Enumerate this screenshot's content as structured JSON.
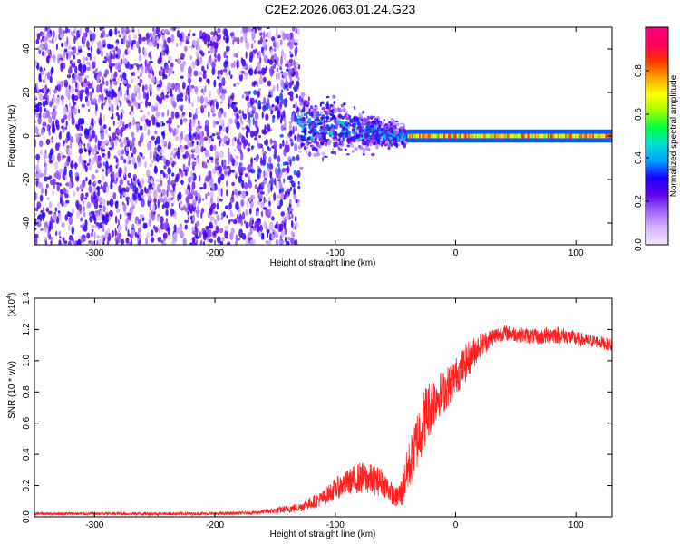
{
  "figure_title": "C2E2.2026.063.01.24.G23",
  "chart_data": [
    {
      "type": "heatmap",
      "name": "spectrogram",
      "xlabel": "Height of straight line (km)",
      "ylabel": "Frequency (Hz)",
      "xlim": [
        -350,
        130
      ],
      "ylim": [
        -50,
        50
      ],
      "xticks": [
        -300,
        -200,
        -100,
        0,
        100
      ],
      "xtick_labels": [
        "-300",
        "-200",
        "-100",
        "0",
        "100"
      ],
      "yticks": [
        -40,
        -20,
        0,
        20,
        40
      ],
      "ytick_labels": [
        "-40",
        "-20",
        "0",
        "20",
        "40"
      ],
      "colorbar": {
        "label": "Normalized spectral amplitude",
        "range": [
          0,
          1
        ],
        "ticks": [
          0.0,
          0.2,
          0.4,
          0.6,
          0.8
        ],
        "tick_labels": [
          "0.0",
          "0.2",
          "0.4",
          "0.6",
          "0.8"
        ],
        "colors": [
          "#f2e6ff",
          "#d9b3ff",
          "#a066ff",
          "#6000e8",
          "#1a00ff",
          "#00a0ff",
          "#00e0d0",
          "#00ff40",
          "#a0ff00",
          "#ffff00",
          "#ffa000",
          "#ff3000",
          "#ff0060",
          "#ff0080"
        ]
      },
      "regions": [
        {
          "desc": "broadband noise",
          "x_range": [
            -350,
            -130
          ],
          "freq_spread": 50,
          "intensity": 0.2
        },
        {
          "desc": "collapsing noise cone",
          "x_range": [
            -130,
            -40
          ],
          "freq_spread_start": 22,
          "freq_spread_end": 6,
          "intensity": 0.3
        },
        {
          "desc": "signal tone",
          "x_range": [
            -40,
            130
          ],
          "center_freq": 0,
          "freq_width": 2,
          "intensity": 0.85
        }
      ]
    },
    {
      "type": "line",
      "name": "snr",
      "xlabel": "Height of straight line (km)",
      "ylabel": "SNR (10 * v/v)",
      "scale_label": "(x10",
      "scale_exponent": "4",
      "xlim": [
        -350,
        130
      ],
      "ylim": [
        0,
        1.4
      ],
      "xticks": [
        -300,
        -200,
        -100,
        0,
        100
      ],
      "xtick_labels": [
        "-300",
        "-200",
        "-100",
        "0",
        "100"
      ],
      "yticks": [
        0.0,
        0.2,
        0.4,
        0.6,
        0.8,
        1.0,
        1.2,
        1.4
      ],
      "ytick_labels": [
        "0.0",
        "0.2",
        "0.4",
        "0.6",
        "0.8",
        "1.0",
        "1.2",
        "1.4"
      ],
      "color": "#ff2020",
      "series": [
        {
          "name": "SNR",
          "x": [
            -350,
            -300,
            -250,
            -200,
            -170,
            -150,
            -130,
            -110,
            -100,
            -90,
            -80,
            -70,
            -60,
            -50,
            -45,
            -40,
            -35,
            -30,
            -25,
            -20,
            -15,
            -10,
            -5,
            0,
            5,
            10,
            15,
            20,
            25,
            30,
            40,
            50,
            60,
            70,
            80,
            90,
            100,
            110,
            120,
            130
          ],
          "y": [
            0.02,
            0.02,
            0.02,
            0.02,
            0.025,
            0.04,
            0.06,
            0.12,
            0.18,
            0.22,
            0.25,
            0.24,
            0.22,
            0.12,
            0.15,
            0.3,
            0.4,
            0.55,
            0.65,
            0.72,
            0.78,
            0.8,
            0.85,
            0.9,
            0.95,
            1.0,
            1.05,
            1.1,
            1.12,
            1.15,
            1.18,
            1.17,
            1.16,
            1.15,
            1.17,
            1.16,
            1.14,
            1.13,
            1.12,
            1.1
          ],
          "noise": [
            0.01,
            0.01,
            0.01,
            0.01,
            0.01,
            0.02,
            0.03,
            0.05,
            0.07,
            0.08,
            0.1,
            0.1,
            0.09,
            0.06,
            0.1,
            0.15,
            0.18,
            0.2,
            0.2,
            0.18,
            0.15,
            0.14,
            0.13,
            0.12,
            0.12,
            0.12,
            0.1,
            0.08,
            0.07,
            0.06,
            0.05,
            0.05,
            0.05,
            0.05,
            0.06,
            0.05,
            0.05,
            0.04,
            0.04,
            0.04
          ]
        }
      ]
    }
  ]
}
